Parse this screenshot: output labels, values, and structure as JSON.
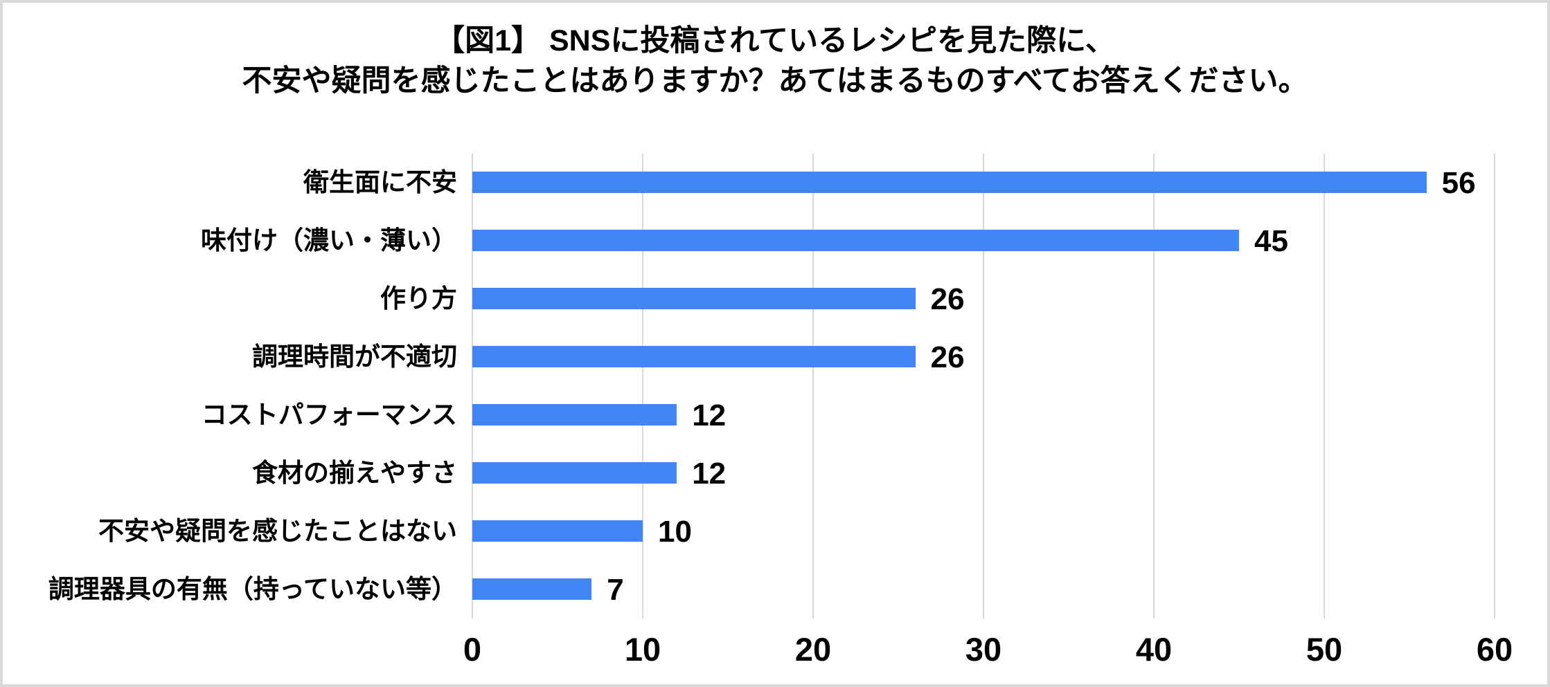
{
  "figure": {
    "title_line1": "【図1】 SNSに投稿されているレシピを見た際に、",
    "title_line2": "不安や疑問を感じたことはありますか？あてはまるものすべてお答えください。"
  },
  "colors": {
    "bar": "#4285F4",
    "gridline": "#D9D9D9",
    "frame_border": "#D9D9D9",
    "background": "#FFFFFF",
    "text": "#000000"
  },
  "chart_data": {
    "type": "bar",
    "orientation": "horizontal",
    "title": "【図1】 SNSに投稿されているレシピを見た際に、不安や疑問を感じたことはありますか？あてはまるものすべてお答えください。",
    "categories": [
      "衛生面に不安",
      "味付け（濃い・薄い）",
      "作り方",
      "調理時間が不適切",
      "コストパフォーマンス",
      "食材の揃えやすさ",
      "不安や疑問を感じたことはない",
      "調理器具の有無（持っていない等）"
    ],
    "values": [
      56,
      45,
      26,
      26,
      12,
      12,
      10,
      7
    ],
    "xlabel": "",
    "ylabel": "",
    "xlim": [
      0,
      60
    ],
    "x_ticks": [
      0,
      10,
      20,
      30,
      40,
      50,
      60
    ],
    "grid": true,
    "legend_position": "none",
    "data_labels": true
  }
}
